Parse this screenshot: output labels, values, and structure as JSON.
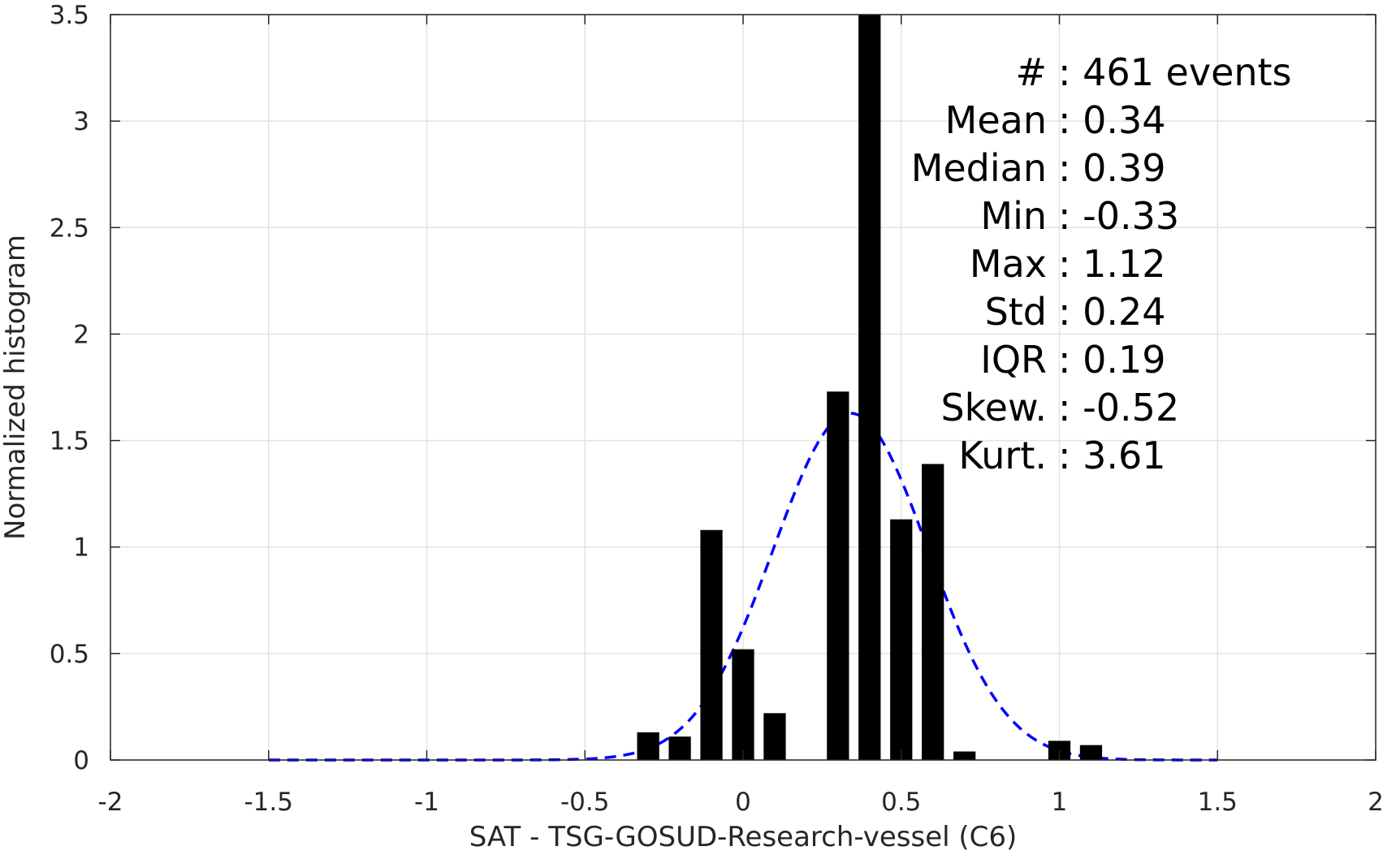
{
  "chart_data": {
    "type": "bar",
    "xlabel": "SAT - TSG-GOSUD-Research-vessel (C6)",
    "ylabel": "Normalized histogram",
    "xlim": [
      -2,
      2
    ],
    "ylim": [
      0,
      3.5
    ],
    "grid": true,
    "xticks": [
      {
        "value": -2,
        "label": "-2"
      },
      {
        "value": -1.5,
        "label": "-1.5"
      },
      {
        "value": -1,
        "label": "-1"
      },
      {
        "value": -0.5,
        "label": "-0.5"
      },
      {
        "value": 0,
        "label": "0"
      },
      {
        "value": 0.5,
        "label": "0.5"
      },
      {
        "value": 1,
        "label": "1"
      },
      {
        "value": 1.5,
        "label": "1.5"
      },
      {
        "value": 2,
        "label": "2"
      }
    ],
    "yticks": [
      {
        "value": 0,
        "label": "0"
      },
      {
        "value": 0.5,
        "label": "0.5"
      },
      {
        "value": 1,
        "label": "1"
      },
      {
        "value": 1.5,
        "label": "1.5"
      },
      {
        "value": 2,
        "label": "2"
      },
      {
        "value": 2.5,
        "label": "2.5"
      },
      {
        "value": 3,
        "label": "3"
      },
      {
        "value": 3.5,
        "label": "3.5"
      }
    ],
    "bar_width": 0.07,
    "bars": [
      {
        "x": -0.3,
        "value": 0.13
      },
      {
        "x": -0.2,
        "value": 0.11
      },
      {
        "x": -0.1,
        "value": 1.08
      },
      {
        "x": 0.0,
        "value": 0.52
      },
      {
        "x": 0.1,
        "value": 0.22
      },
      {
        "x": 0.3,
        "value": 1.73
      },
      {
        "x": 0.4,
        "value": 3.5
      },
      {
        "x": 0.5,
        "value": 1.13
      },
      {
        "x": 0.6,
        "value": 1.39
      },
      {
        "x": 0.7,
        "value": 0.04
      },
      {
        "x": 1.0,
        "value": 0.09
      },
      {
        "x": 1.1,
        "value": 0.07
      }
    ],
    "fit_curve": {
      "style": "dashed",
      "color": "#0000ff",
      "mean": 0.34,
      "std": 0.245,
      "x_range": [
        -1.5,
        1.5
      ]
    },
    "bar_color": "#000000",
    "stats": [
      {
        "name": "#",
        "value": ": 461 events"
      },
      {
        "name": "Mean",
        "value": ": 0.34"
      },
      {
        "name": "Median",
        "value": ": 0.39"
      },
      {
        "name": "Min",
        "value": ": -0.33"
      },
      {
        "name": "Max",
        "value": ": 1.12"
      },
      {
        "name": "Std",
        "value": ": 0.24"
      },
      {
        "name": "IQR",
        "value": ": 0.19"
      },
      {
        "name": "Skew.",
        "value": ": -0.52"
      },
      {
        "name": "Kurt.",
        "value": ": 3.61"
      }
    ]
  }
}
